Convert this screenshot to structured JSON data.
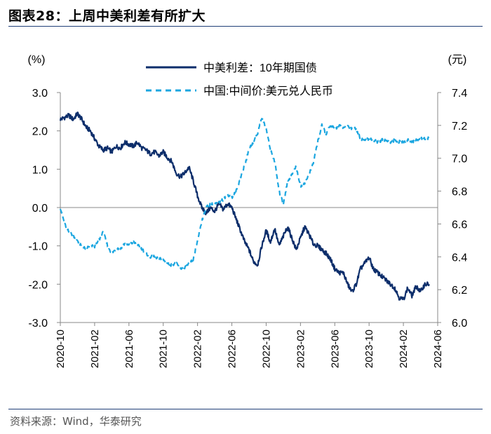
{
  "header": {
    "title": "图表28：上周中美利差有所扩大"
  },
  "footer": {
    "source": "资料来源：Wind，华泰研究"
  },
  "colors": {
    "spread": "#0d2e6b",
    "fx": "#1ba6e0",
    "rule": "#1f3f77",
    "zero": "#888888"
  },
  "chart_data": {
    "type": "line",
    "title": "",
    "left_axis": {
      "unit_label": "(%)",
      "range": [
        -3.0,
        3.0
      ],
      "ticks": [
        "3.0",
        "2.0",
        "1.0",
        "0.0",
        "-1.0",
        "-2.0",
        "-3.0"
      ],
      "tick_values": [
        3,
        2,
        1,
        0,
        -1,
        -2,
        -3
      ]
    },
    "right_axis": {
      "unit_label": "(元)",
      "range": [
        6.0,
        7.4
      ],
      "ticks": [
        "7.4",
        "7.2",
        "7.0",
        "6.8",
        "6.6",
        "6.4",
        "6.2",
        "6.0"
      ],
      "tick_values": [
        7.4,
        7.2,
        7.0,
        6.8,
        6.6,
        6.4,
        6.2,
        6.0
      ]
    },
    "x_ticks": [
      "2020-10",
      "2021-02",
      "2021-06",
      "2021-10",
      "2022-02",
      "2022-06",
      "2022-10",
      "2023-02",
      "2023-06",
      "2023-10",
      "2024-02",
      "2024-06"
    ],
    "x_unit": "months since 2020-10",
    "x_range": [
      0,
      44
    ],
    "legend": {
      "placement": "top-center"
    },
    "series": [
      {
        "name": "中美利差：10年期国债",
        "axis": "left",
        "style": "solid",
        "points": [
          [
            0,
            2.3
          ],
          [
            0.5,
            2.35
          ],
          [
            1,
            2.4
          ],
          [
            1.5,
            2.3
          ],
          [
            2,
            2.45
          ],
          [
            2.5,
            2.3
          ],
          [
            3,
            2.1
          ],
          [
            3.5,
            2.0
          ],
          [
            4,
            1.8
          ],
          [
            4.5,
            1.6
          ],
          [
            5,
            1.5
          ],
          [
            5.5,
            1.55
          ],
          [
            6,
            1.45
          ],
          [
            6.5,
            1.6
          ],
          [
            7,
            1.55
          ],
          [
            7.5,
            1.7
          ],
          [
            8,
            1.65
          ],
          [
            8.5,
            1.6
          ],
          [
            9,
            1.7
          ],
          [
            9.5,
            1.55
          ],
          [
            10,
            1.5
          ],
          [
            10.5,
            1.4
          ],
          [
            11,
            1.45
          ],
          [
            11.5,
            1.35
          ],
          [
            12,
            1.45
          ],
          [
            12.5,
            1.3
          ],
          [
            13,
            1.2
          ],
          [
            13.5,
            0.9
          ],
          [
            14,
            0.8
          ],
          [
            14.5,
            0.9
          ],
          [
            15,
            1.05
          ],
          [
            15.5,
            0.7
          ],
          [
            16,
            0.3
          ],
          [
            16.5,
            0.0
          ],
          [
            17,
            -0.15
          ],
          [
            17.5,
            0.0
          ],
          [
            18,
            -0.1
          ],
          [
            18.5,
            0.1
          ],
          [
            19,
            -0.05
          ],
          [
            19.5,
            0.1
          ],
          [
            20,
            0.0
          ],
          [
            20.5,
            -0.3
          ],
          [
            21,
            -0.6
          ],
          [
            21.5,
            -0.9
          ],
          [
            22,
            -1.1
          ],
          [
            22.5,
            -1.4
          ],
          [
            23,
            -1.5
          ],
          [
            23.5,
            -1.0
          ],
          [
            24,
            -0.6
          ],
          [
            24.5,
            -0.9
          ],
          [
            25,
            -0.55
          ],
          [
            25.5,
            -1.0
          ],
          [
            26,
            -0.75
          ],
          [
            26.5,
            -0.5
          ],
          [
            27,
            -0.8
          ],
          [
            27.5,
            -1.1
          ],
          [
            28,
            -0.8
          ],
          [
            28.5,
            -0.5
          ],
          [
            29,
            -0.7
          ],
          [
            29.5,
            -0.95
          ],
          [
            30,
            -1.0
          ],
          [
            30.5,
            -1.1
          ],
          [
            31,
            -1.2
          ],
          [
            31.5,
            -1.35
          ],
          [
            32,
            -1.6
          ],
          [
            32.5,
            -1.7
          ],
          [
            33,
            -1.7
          ],
          [
            33.5,
            -2.0
          ],
          [
            34,
            -2.2
          ],
          [
            34.5,
            -2.0
          ],
          [
            35,
            -1.6
          ],
          [
            35.5,
            -1.45
          ],
          [
            36,
            -1.3
          ],
          [
            36.5,
            -1.6
          ],
          [
            37,
            -1.7
          ],
          [
            37.5,
            -1.8
          ],
          [
            38,
            -1.9
          ],
          [
            38.5,
            -2.0
          ],
          [
            39,
            -2.1
          ],
          [
            39.5,
            -2.35
          ],
          [
            40,
            -2.4
          ],
          [
            40.5,
            -2.1
          ],
          [
            41,
            -2.3
          ],
          [
            41.5,
            -2.05
          ],
          [
            42,
            -2.2
          ],
          [
            42.5,
            -2.0
          ],
          [
            43,
            -2.0
          ]
        ]
      },
      {
        "name": "中国:中间价:美元兑人民币",
        "axis": "right",
        "style": "dashed",
        "points": [
          [
            0,
            6.7
          ],
          [
            0.5,
            6.6
          ],
          [
            1,
            6.55
          ],
          [
            1.5,
            6.53
          ],
          [
            2,
            6.5
          ],
          [
            2.5,
            6.46
          ],
          [
            3,
            6.45
          ],
          [
            3.5,
            6.47
          ],
          [
            4,
            6.46
          ],
          [
            4.5,
            6.5
          ],
          [
            5,
            6.55
          ],
          [
            5.5,
            6.47
          ],
          [
            6,
            6.42
          ],
          [
            6.5,
            6.45
          ],
          [
            7,
            6.45
          ],
          [
            7.5,
            6.48
          ],
          [
            8,
            6.47
          ],
          [
            8.5,
            6.49
          ],
          [
            9,
            6.47
          ],
          [
            9.5,
            6.45
          ],
          [
            10,
            6.42
          ],
          [
            10.5,
            6.4
          ],
          [
            11,
            6.4
          ],
          [
            11.5,
            6.39
          ],
          [
            12,
            6.38
          ],
          [
            12.5,
            6.36
          ],
          [
            13,
            6.35
          ],
          [
            13.5,
            6.36
          ],
          [
            14,
            6.33
          ],
          [
            14.5,
            6.33
          ],
          [
            15,
            6.36
          ],
          [
            15.5,
            6.38
          ],
          [
            16,
            6.5
          ],
          [
            16.5,
            6.62
          ],
          [
            17,
            6.7
          ],
          [
            17.5,
            6.72
          ],
          [
            18,
            6.72
          ],
          [
            18.5,
            6.73
          ],
          [
            19,
            6.75
          ],
          [
            19.5,
            6.78
          ],
          [
            20,
            6.76
          ],
          [
            20.5,
            6.8
          ],
          [
            21,
            6.88
          ],
          [
            21.5,
            6.96
          ],
          [
            22,
            7.05
          ],
          [
            22.5,
            7.1
          ],
          [
            23,
            7.15
          ],
          [
            23.5,
            7.25
          ],
          [
            24,
            7.18
          ],
          [
            24.5,
            7.05
          ],
          [
            25,
            6.98
          ],
          [
            25.5,
            6.8
          ],
          [
            26,
            6.72
          ],
          [
            26.5,
            6.86
          ],
          [
            27,
            6.9
          ],
          [
            27.5,
            6.95
          ],
          [
            28,
            6.83
          ],
          [
            28.5,
            6.85
          ],
          [
            29,
            6.9
          ],
          [
            29.5,
            6.97
          ],
          [
            30,
            7.1
          ],
          [
            30.5,
            7.2
          ],
          [
            31,
            7.15
          ],
          [
            31.5,
            7.2
          ],
          [
            32,
            7.18
          ],
          [
            32.5,
            7.2
          ],
          [
            33,
            7.18
          ],
          [
            33.5,
            7.2
          ],
          [
            34,
            7.18
          ],
          [
            34.5,
            7.18
          ],
          [
            35,
            7.12
          ],
          [
            35.5,
            7.11
          ],
          [
            36,
            7.12
          ],
          [
            36.5,
            7.11
          ],
          [
            37,
            7.1
          ],
          [
            37.5,
            7.11
          ],
          [
            38,
            7.11
          ],
          [
            38.5,
            7.1
          ],
          [
            39,
            7.11
          ],
          [
            39.5,
            7.1
          ],
          [
            40,
            7.1
          ],
          [
            40.5,
            7.11
          ],
          [
            41,
            7.1
          ],
          [
            41.5,
            7.11
          ],
          [
            42,
            7.12
          ],
          [
            42.5,
            7.12
          ],
          [
            43,
            7.12
          ]
        ]
      }
    ]
  }
}
